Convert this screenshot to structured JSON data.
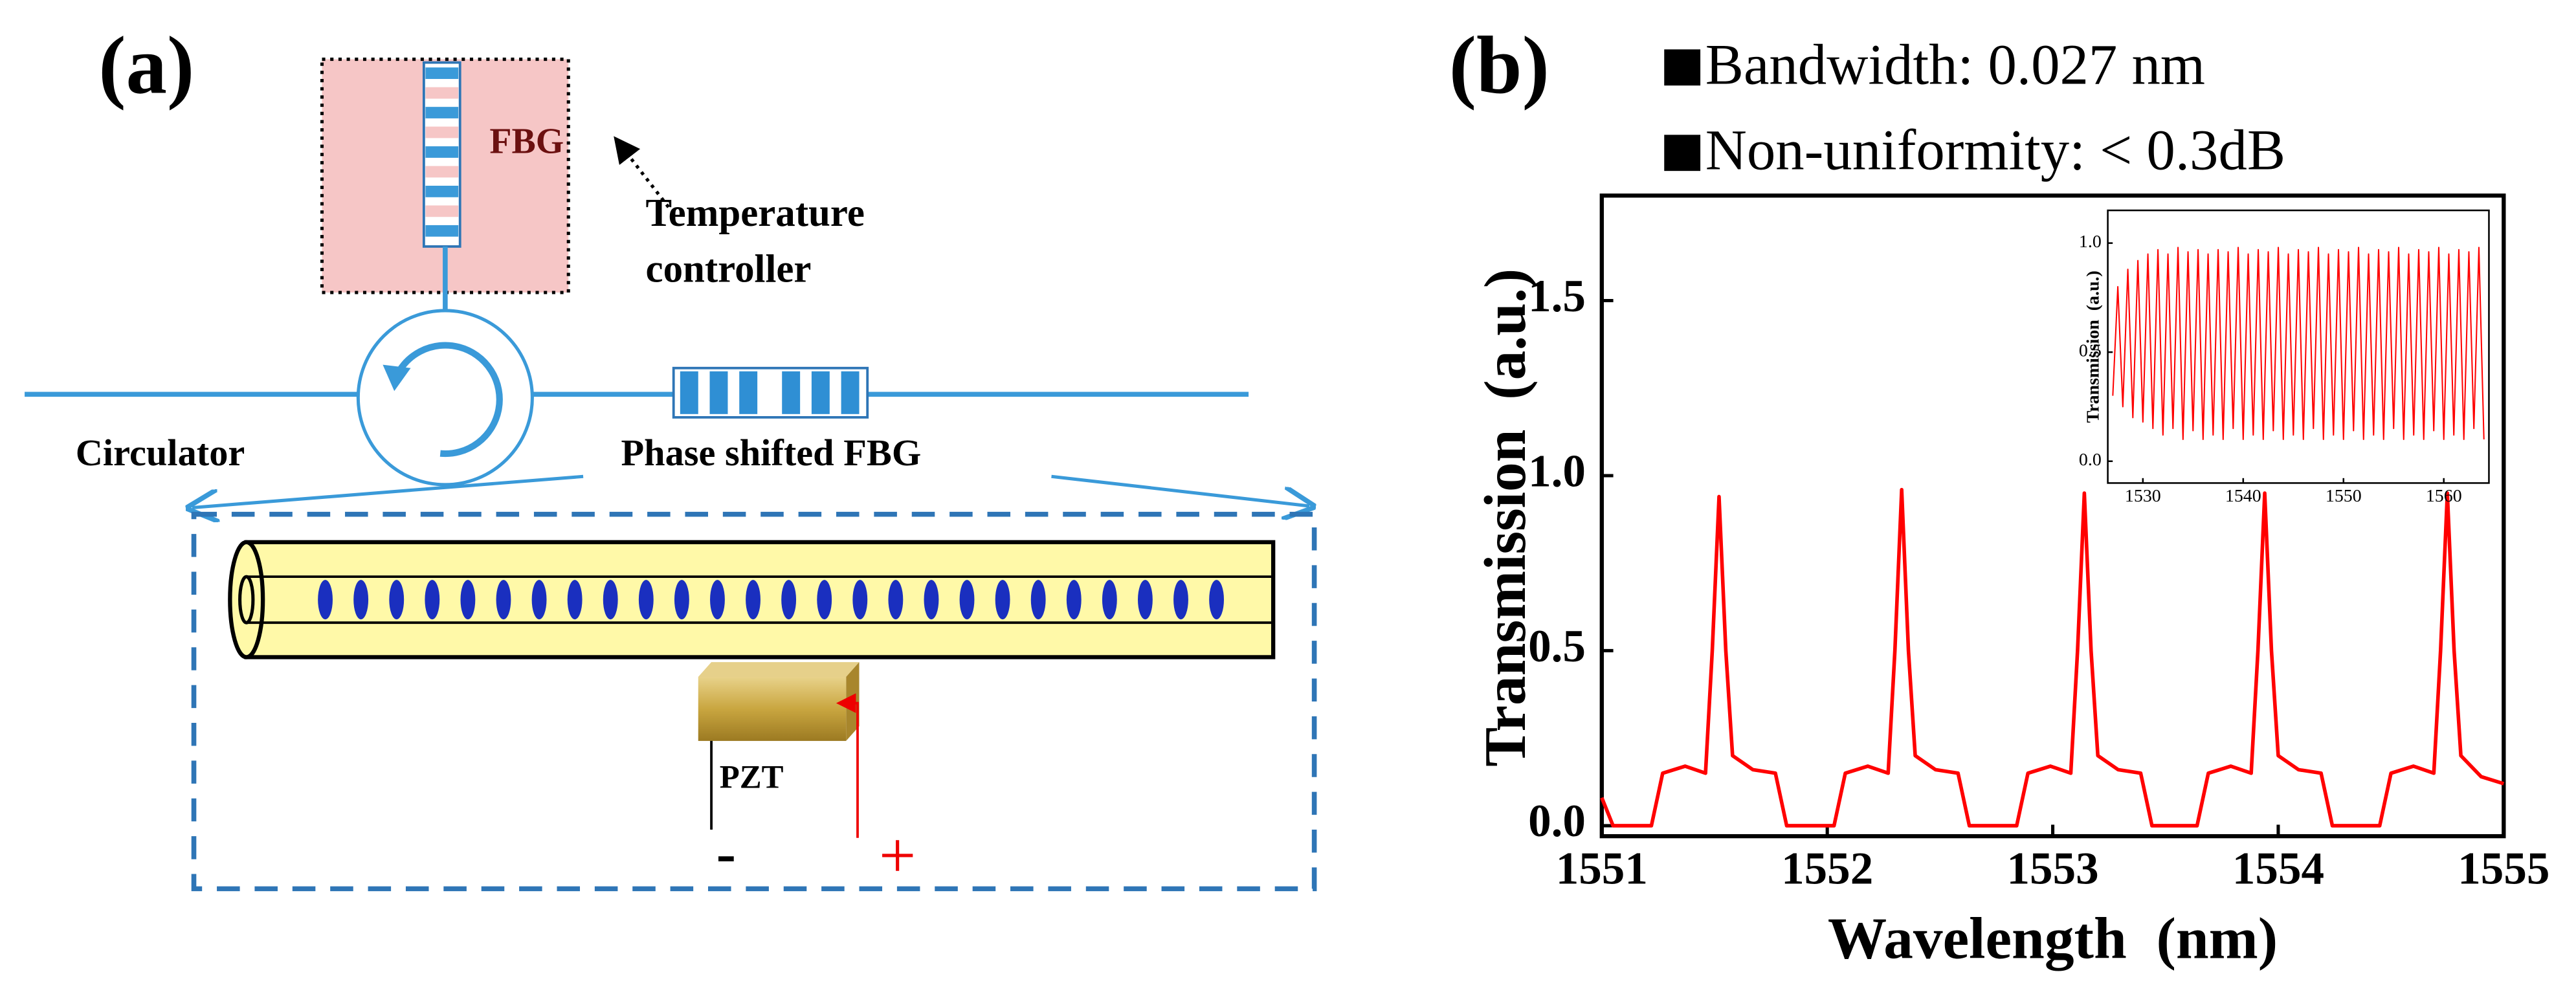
{
  "panel_a": {
    "label": "(a)",
    "fbg": "FBG",
    "temperature_controller": [
      "Temperature",
      "controller"
    ],
    "circulator": "Circulator",
    "phase_shifted_fbg": "Phase shifted FBG",
    "pzt": "PZT",
    "minus": "-",
    "plus": "+"
  },
  "chart_data": [
    {
      "type": "line",
      "panel_label": "(b)",
      "annotations": [
        "Bandwidth: 0.027 nm",
        "Non-uniformity: < 0.3dB"
      ],
      "xlabel": "Wavelength  (nm)",
      "ylabel": "Transmission  (a.u.)",
      "xlim": [
        1551,
        1555
      ],
      "xticks": [
        1551,
        1552,
        1553,
        1554,
        1555
      ],
      "ylim": [
        -0.03,
        1.8
      ],
      "yticks": [
        {
          "value": 0,
          "label": "0.0"
        },
        {
          "value": 0.5,
          "label": "0.5"
        },
        {
          "value": 1,
          "label": "1.0"
        },
        {
          "value": 1.5,
          "label": "1.5"
        }
      ],
      "series": [
        {
          "color": "#ff0000",
          "x": [
            1551.0,
            1551.05,
            1551.22,
            1551.27,
            1551.37,
            1551.46,
            1551.49,
            1551.52,
            1551.55,
            1551.58,
            1551.67,
            1551.77,
            1551.82,
            1552.03,
            1552.08,
            1552.18,
            1552.27,
            1552.3,
            1552.33,
            1552.36,
            1552.39,
            1552.48,
            1552.58,
            1552.63,
            1552.84,
            1552.89,
            1552.99,
            1553.08,
            1553.11,
            1553.14,
            1553.17,
            1553.2,
            1553.29,
            1553.39,
            1553.44,
            1553.64,
            1553.69,
            1553.79,
            1553.88,
            1553.91,
            1553.94,
            1553.97,
            1554.0,
            1554.09,
            1554.19,
            1554.24,
            1554.45,
            1554.5,
            1554.6,
            1554.69,
            1554.72,
            1554.75,
            1554.78,
            1554.81,
            1554.9,
            1555.0
          ],
          "values": [
            0.08,
            0,
            0,
            0.15,
            0.17,
            0.15,
            0.5,
            0.94,
            0.5,
            0.2,
            0.16,
            0.15,
            0,
            0,
            0.15,
            0.17,
            0.15,
            0.5,
            0.96,
            0.5,
            0.2,
            0.16,
            0.15,
            0,
            0,
            0.15,
            0.17,
            0.15,
            0.5,
            0.95,
            0.5,
            0.2,
            0.16,
            0.15,
            0,
            0,
            0.15,
            0.17,
            0.15,
            0.5,
            0.95,
            0.5,
            0.2,
            0.16,
            0.15,
            0,
            0,
            0.15,
            0.17,
            0.15,
            0.5,
            0.95,
            0.5,
            0.2,
            0.14,
            0.12
          ]
        }
      ]
    },
    {
      "type": "line",
      "ylabel": "Transmission  (a.u.)",
      "xlim": [
        1526.5,
        1564.5
      ],
      "xticks": [
        1530,
        1540,
        1550,
        1560
      ],
      "ylim": [
        -0.1,
        1.15
      ],
      "yticks": [
        {
          "value": 0,
          "label": "0.0"
        },
        {
          "value": 0.5,
          "label": "0.5"
        },
        {
          "value": 1,
          "label": "1.0"
        }
      ],
      "series": [
        {
          "color": "#ff0000",
          "x": [
            1527,
            1527.5,
            1528,
            1528.5,
            1529,
            1529.5,
            1530,
            1530.5,
            1531,
            1531.5,
            1532,
            1532.5,
            1533,
            1533.5,
            1534,
            1534.5,
            1535,
            1535.5,
            1536,
            1536.5,
            1537,
            1537.5,
            1538,
            1538.5,
            1539,
            1539.5,
            1540,
            1540.5,
            1541,
            1541.5,
            1542,
            1542.5,
            1543,
            1543.5,
            1544,
            1544.5,
            1545,
            1545.5,
            1546,
            1546.5,
            1547,
            1547.5,
            1548,
            1548.5,
            1549,
            1549.5,
            1550,
            1550.5,
            1551,
            1551.5,
            1552,
            1552.5,
            1553,
            1553.5,
            1554,
            1554.5,
            1555,
            1555.5,
            1556,
            1556.5,
            1557,
            1557.5,
            1558,
            1558.5,
            1559,
            1559.5,
            1560,
            1560.5,
            1561,
            1561.5,
            1562,
            1562.5,
            1563,
            1563.5,
            1564
          ],
          "values": [
            0.3,
            0.8,
            0.25,
            0.88,
            0.2,
            0.92,
            0.18,
            0.95,
            0.15,
            0.97,
            0.12,
            0.95,
            0.15,
            0.98,
            0.1,
            0.96,
            0.14,
            0.97,
            0.1,
            0.95,
            0.12,
            0.97,
            0.1,
            0.96,
            0.15,
            0.98,
            0.1,
            0.95,
            0.12,
            0.97,
            0.1,
            0.96,
            0.14,
            0.98,
            0.1,
            0.95,
            0.12,
            0.97,
            0.1,
            0.96,
            0.15,
            0.98,
            0.1,
            0.95,
            0.12,
            0.97,
            0.1,
            0.96,
            0.14,
            0.98,
            0.1,
            0.95,
            0.12,
            0.97,
            0.1,
            0.96,
            0.15,
            0.98,
            0.1,
            0.95,
            0.12,
            0.97,
            0.1,
            0.96,
            0.14,
            0.98,
            0.1,
            0.95,
            0.12,
            0.97,
            0.1,
            0.96,
            0.15,
            0.98,
            0.1
          ]
        }
      ]
    }
  ]
}
